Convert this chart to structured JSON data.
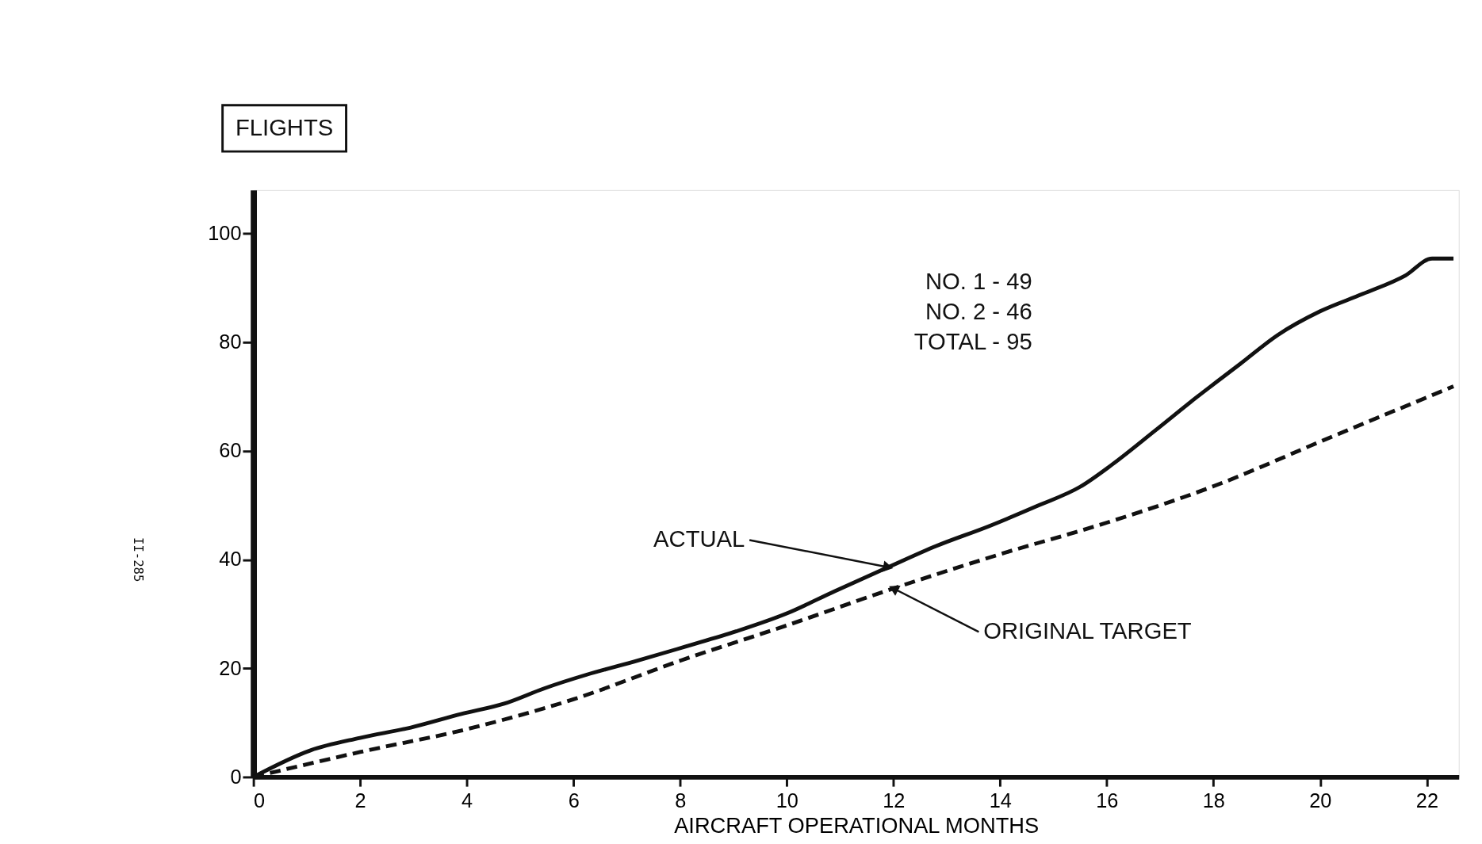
{
  "chart_data": {
    "type": "line",
    "xlabel": "AIRCRAFT OPERATIONAL MONTHS",
    "ylabel": "FLIGHTS",
    "xlim": [
      0,
      22.6
    ],
    "ylim": [
      0,
      108
    ],
    "xticks": [
      0,
      2,
      4,
      6,
      8,
      10,
      12,
      14,
      16,
      18,
      20,
      22
    ],
    "yticks": [
      0,
      20,
      40,
      60,
      80,
      100
    ],
    "grid": false,
    "legend": false,
    "marker": "none",
    "series": [
      {
        "name": "ACTUAL",
        "color": "#111111",
        "line_style": "solid",
        "x": [
          0,
          1.07,
          2,
          2.95,
          3.9,
          4.7,
          5.45,
          6.24,
          7.2,
          8.1,
          9.05,
          10,
          10.9,
          11.9,
          12.8,
          13.8,
          14.7,
          15.5,
          16.1,
          16.9,
          17.7,
          18.5,
          19.2,
          20,
          20.8,
          21.6,
          22.1,
          22.5
        ],
        "values": [
          0,
          4.9,
          7.2,
          9.1,
          11.6,
          13.5,
          16.3,
          18.8,
          21.4,
          24,
          26.8,
          30.1,
          34.2,
          38.6,
          42.5,
          46.2,
          49.9,
          53.4,
          57.5,
          63.7,
          70,
          76,
          81.3,
          85.7,
          88.9,
          92.3,
          95.4,
          95.4
        ]
      },
      {
        "name": "ORIGINAL TARGET",
        "color": "#111111",
        "line_style": "dashed",
        "x": [
          0,
          2,
          4,
          6,
          8,
          10,
          12,
          14,
          16,
          18,
          20,
          22.5
        ],
        "values": [
          0,
          4.6,
          8.8,
          14.3,
          21.4,
          27.9,
          34.7,
          41,
          46.8,
          53.5,
          61.7,
          71.9
        ]
      }
    ],
    "annotations": [
      "NO.  1  -  49",
      "NO.  2  -  46",
      "TOTAL                          -   95",
      "II-285"
    ]
  }
}
